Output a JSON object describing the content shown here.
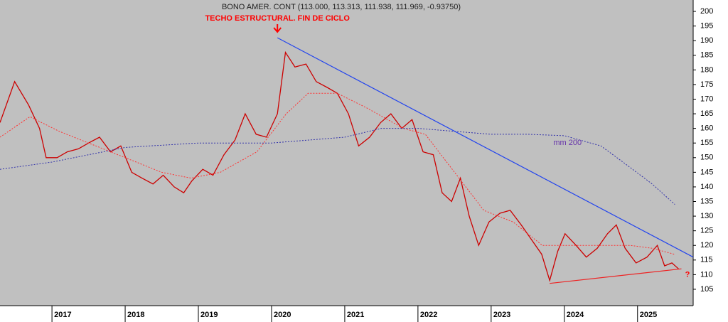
{
  "chart_data": {
    "type": "line",
    "title": "BONO AMER. CONT (113.000, 113.313, 111.938, 111.969, -0.93750)",
    "annotations": [
      {
        "text": "TECHO ESTRUCTURAL. FIN DE CICLO",
        "color": "#ff0000",
        "x": 2020.08,
        "y": 191
      },
      {
        "text": "mm 200",
        "color": "#6633aa",
        "x": 2023.85,
        "y": 155
      },
      {
        "text": "?",
        "color": "#ff0000",
        "x": 2025.65,
        "y": 110
      }
    ],
    "xlim": [
      2016.29,
      2025.76
    ],
    "xticks": [
      2017,
      2018,
      2019,
      2020,
      2021,
      2022,
      2023,
      2024,
      2025
    ],
    "ylim": [
      99.4,
      203.9
    ],
    "yticks": [
      105,
      110,
      115,
      120,
      125,
      130,
      135,
      140,
      145,
      150,
      155,
      160,
      165,
      170,
      175,
      180,
      185,
      190,
      195,
      200
    ],
    "series": [
      {
        "color": "#cc0000",
        "dash": false,
        "x": [
          2016.29,
          2016.49,
          2016.68,
          2016.83,
          2016.92,
          2017.07,
          2017.21,
          2017.36,
          2017.5,
          2017.65,
          2017.8,
          2017.94,
          2018.09,
          2018.23,
          2018.38,
          2018.52,
          2018.67,
          2018.8,
          2018.91,
          2019.06,
          2019.2,
          2019.35,
          2019.5,
          2019.64,
          2019.79,
          2019.93,
          2020.08,
          2020.19,
          2020.32,
          2020.47,
          2020.61,
          2020.76,
          2020.9,
          2021.05,
          2021.19,
          2021.34,
          2021.49,
          2021.63,
          2021.78,
          2021.92,
          2022.07,
          2022.21,
          2022.33,
          2022.46,
          2022.58,
          2022.7,
          2022.83,
          2022.97,
          2023.12,
          2023.26,
          2023.41,
          2023.55,
          2023.69,
          2023.8,
          2023.91,
          2024.01,
          2024.16,
          2024.3,
          2024.45,
          2024.59,
          2024.71,
          2024.83,
          2024.98,
          2025.13,
          2025.27,
          2025.37,
          2025.47,
          2025.56
        ],
        "values": [
          162,
          176,
          168,
          160,
          150,
          150,
          152,
          153,
          155,
          157,
          152,
          154,
          145,
          143,
          141,
          144,
          140,
          138,
          142,
          146,
          144,
          151,
          156,
          165,
          158,
          157,
          165,
          186,
          181,
          182,
          176,
          174,
          172,
          165,
          154,
          157,
          162,
          165,
          160,
          163,
          152,
          151,
          138,
          135,
          143,
          130,
          120,
          128,
          131,
          132,
          127,
          122,
          117,
          108,
          118,
          124,
          120,
          116,
          119,
          124,
          127,
          119,
          114,
          116,
          120,
          113,
          114,
          112
        ]
      },
      {
        "color": "#ff3333",
        "dash": true,
        "x": [
          2016.29,
          2016.7,
          2017.1,
          2017.5,
          2018.0,
          2018.5,
          2018.9,
          2019.3,
          2019.8,
          2020.2,
          2020.5,
          2020.9,
          2021.3,
          2021.8,
          2022.1,
          2022.5,
          2022.9,
          2023.3,
          2023.7,
          2024.1,
          2024.5,
          2024.9,
          2025.2,
          2025.5
        ],
        "values": [
          157,
          164,
          159,
          155,
          150,
          145,
          143,
          145,
          152,
          165,
          172,
          172,
          167,
          160,
          158,
          145,
          132,
          128,
          120,
          120,
          120,
          120,
          119,
          117
        ]
      },
      {
        "color": "#3333aa",
        "dash": true,
        "x": [
          2016.29,
          2017.0,
          2018.0,
          2019.0,
          2019.5,
          2020.0,
          2021.0,
          2021.5,
          2022.0,
          2022.5,
          2023.0,
          2023.5,
          2024.0,
          2024.5,
          2024.8,
          2025.2,
          2025.51
        ],
        "values": [
          146,
          148.5,
          153.5,
          155,
          155,
          155,
          157,
          160,
          160,
          159,
          158,
          158,
          157.5,
          154,
          148.5,
          141,
          134
        ]
      }
    ],
    "trendlines": [
      {
        "color": "#2244ee",
        "x": [
          2020.08,
          2025.76
        ],
        "values": [
          191,
          116
        ]
      },
      {
        "color": "#ee2222",
        "x": [
          2023.8,
          2025.6
        ],
        "values": [
          107,
          112
        ]
      }
    ]
  }
}
